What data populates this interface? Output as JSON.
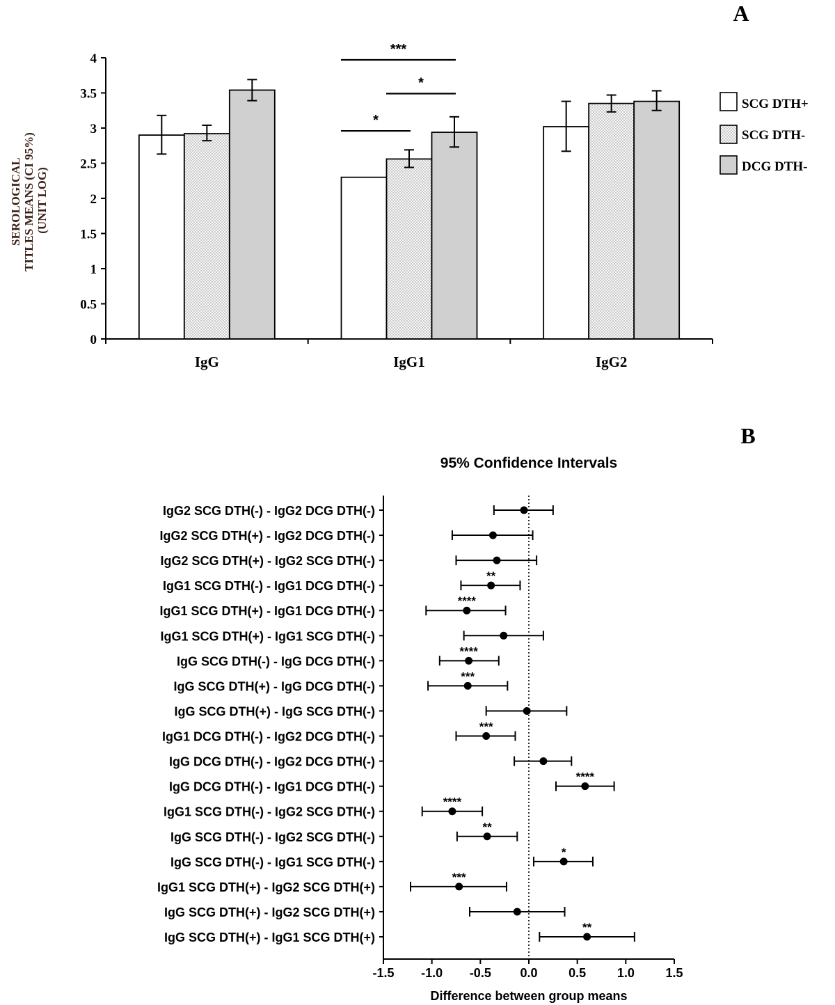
{
  "panel_a": {
    "letter": "A",
    "ylabel_lines": [
      "SEROLOGICAL",
      "TITLES MEANS (CI 95%)",
      "(UNIT LOG)"
    ],
    "legend": [
      "SCG DTH+",
      "SCG DTH-",
      "DCG DTH-"
    ],
    "sig_labels": [
      "***",
      "*",
      "*"
    ]
  },
  "panel_b": {
    "letter": "B",
    "title": "95% Confidence Intervals",
    "xlabel": "Difference between group means"
  },
  "colors": {
    "bar_white": "#ffffff",
    "bar_dotted": "#f4f4f4",
    "bar_gray": "#d0d0d0",
    "ink": "#000000"
  },
  "chart_data": [
    {
      "type": "bar",
      "title": "",
      "xlabel": "",
      "ylabel": "SEROLOGICAL TITLES MEANS (CI 95%) (UNIT LOG)",
      "categories": [
        "IgG",
        "IgG1",
        "IgG2"
      ],
      "ylim": [
        0,
        4
      ],
      "yticks": [
        0,
        0.5,
        1,
        1.5,
        2,
        2.5,
        3,
        3.5,
        4
      ],
      "grid": false,
      "legend_position": "right",
      "series": [
        {
          "name": "SCG DTH+",
          "pattern": "white",
          "values": [
            2.9,
            2.3,
            3.02
          ],
          "err_low": [
            2.63,
            2.3,
            2.67
          ],
          "err_high": [
            3.18,
            2.3,
            3.38
          ]
        },
        {
          "name": "SCG DTH-",
          "pattern": "dotted",
          "values": [
            2.92,
            2.56,
            3.35
          ],
          "err_low": [
            2.82,
            2.44,
            3.23
          ],
          "err_high": [
            3.04,
            2.69,
            3.47
          ]
        },
        {
          "name": "DCG DTH-",
          "pattern": "gray",
          "values": [
            3.54,
            2.94,
            3.38
          ],
          "err_low": [
            3.39,
            2.73,
            3.25
          ],
          "err_high": [
            3.69,
            3.16,
            3.53
          ]
        }
      ],
      "significance": [
        {
          "category": "IgG1",
          "from": "SCG DTH+",
          "to": "DCG DTH-",
          "y": 3.97,
          "label": "***"
        },
        {
          "category": "IgG1",
          "from": "SCG DTH-",
          "to": "DCG DTH-",
          "y": 3.49,
          "label": "*"
        },
        {
          "category": "IgG1",
          "from": "SCG DTH+",
          "to": "SCG DTH-",
          "y": 2.96,
          "label": "*"
        }
      ]
    },
    {
      "type": "scatter",
      "title": "95% Confidence Intervals",
      "xlabel": "Difference between group means",
      "ylabel": "",
      "xlim": [
        -1.5,
        1.5
      ],
      "xticks": [
        -1.5,
        -1.0,
        -0.5,
        0.0,
        0.5,
        1.0,
        1.5
      ],
      "reference_line": 0,
      "comparisons": [
        {
          "label": "IgG2 SCG DTH(-) - IgG2 DCG DTH(-)",
          "mean": -0.05,
          "low": -0.36,
          "high": 0.25,
          "sig": ""
        },
        {
          "label": "IgG2 SCG DTH(+) - IgG2 DCG DTH(-)",
          "mean": -0.37,
          "low": -0.79,
          "high": 0.04,
          "sig": ""
        },
        {
          "label": "IgG2 SCG DTH(+) - IgG2 SCG DTH(-)",
          "mean": -0.33,
          "low": -0.75,
          "high": 0.08,
          "sig": ""
        },
        {
          "label": "IgG1 SCG DTH(-) - IgG1 DCG DTH(-)",
          "mean": -0.39,
          "low": -0.7,
          "high": -0.09,
          "sig": "**"
        },
        {
          "label": "IgG1 SCG DTH(+) - IgG1 DCG DTH(-)",
          "mean": -0.64,
          "low": -1.06,
          "high": -0.24,
          "sig": "****"
        },
        {
          "label": "IgG1 SCG DTH(+) - IgG1 SCG DTH(-)",
          "mean": -0.26,
          "low": -0.67,
          "high": 0.15,
          "sig": ""
        },
        {
          "label": "IgG SCG DTH(-) - IgG DCG DTH(-)",
          "mean": -0.62,
          "low": -0.92,
          "high": -0.31,
          "sig": "****"
        },
        {
          "label": "IgG SCG DTH(+) - IgG DCG DTH(-)",
          "mean": -0.63,
          "low": -1.04,
          "high": -0.22,
          "sig": "***"
        },
        {
          "label": "IgG SCG DTH(+) - IgG SCG DTH(-)",
          "mean": -0.02,
          "low": -0.44,
          "high": 0.39,
          "sig": ""
        },
        {
          "label": "IgG1 DCG DTH(-) - IgG2 DCG DTH(-)",
          "mean": -0.44,
          "low": -0.75,
          "high": -0.14,
          "sig": "***"
        },
        {
          "label": "IgG DCG DTH(-) - IgG2 DCG DTH(-)",
          "mean": 0.15,
          "low": -0.15,
          "high": 0.44,
          "sig": ""
        },
        {
          "label": "IgG DCG DTH(-) - IgG1 DCG DTH(-)",
          "mean": 0.58,
          "low": 0.28,
          "high": 0.88,
          "sig": "****"
        },
        {
          "label": "IgG1 SCG DTH(-) - IgG2 SCG DTH(-)",
          "mean": -0.79,
          "low": -1.1,
          "high": -0.48,
          "sig": "****"
        },
        {
          "label": "IgG SCG DTH(-) - IgG2 SCG DTH(-)",
          "mean": -0.43,
          "low": -0.74,
          "high": -0.12,
          "sig": "**"
        },
        {
          "label": "IgG SCG DTH(-) - IgG1 SCG DTH(-)",
          "mean": 0.36,
          "low": 0.05,
          "high": 0.66,
          "sig": "*"
        },
        {
          "label": "IgG1 SCG DTH(+) - IgG2 SCG DTH(+)",
          "mean": -0.72,
          "low": -1.22,
          "high": -0.23,
          "sig": "***"
        },
        {
          "label": "IgG SCG DTH(+) - IgG2 SCG DTH(+)",
          "mean": -0.12,
          "low": -0.61,
          "high": 0.37,
          "sig": ""
        },
        {
          "label": "IgG SCG DTH(+) - IgG1 SCG DTH(+)",
          "mean": 0.6,
          "low": 0.11,
          "high": 1.09,
          "sig": "**"
        }
      ]
    }
  ]
}
